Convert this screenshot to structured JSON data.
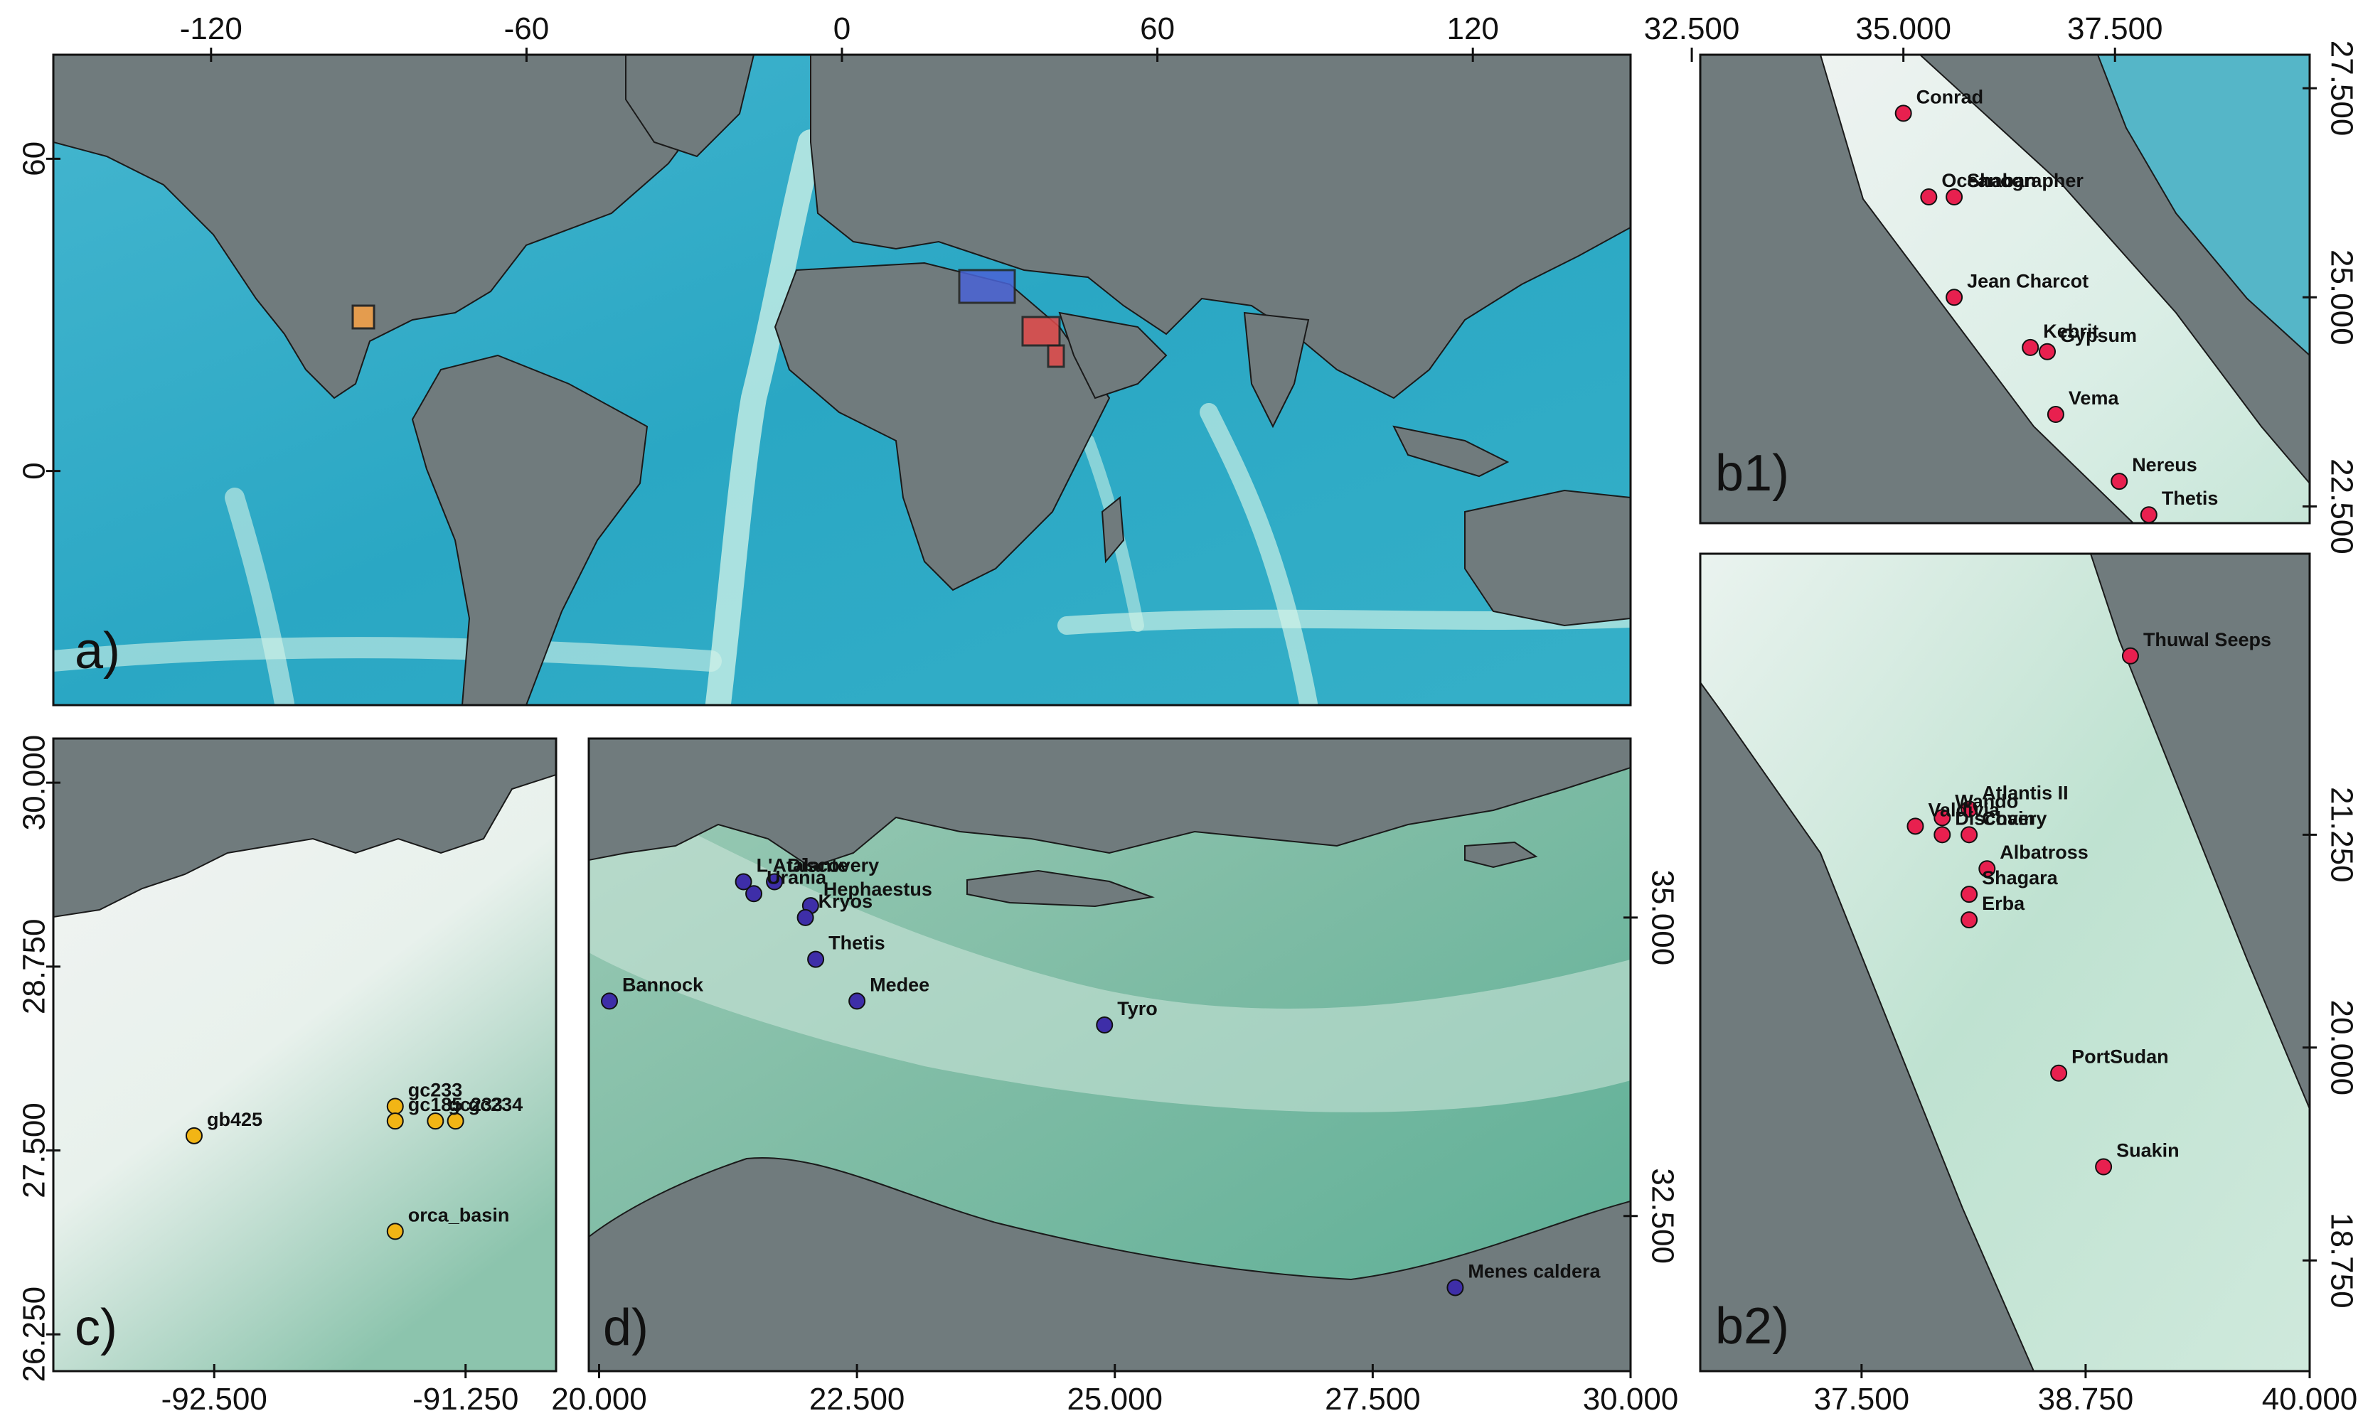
{
  "colors": {
    "land": "#707b7d",
    "ocean_deep": "#2aa7c4",
    "ocean_shelf": "#c8f0e2",
    "sea_light": "#eef3f1",
    "sea_mid": "#9ccbb6",
    "sea_dark": "#4aa58f",
    "red_sea_marker": "#e8204f",
    "med_marker": "#3e2ea8",
    "gulf_marker": "#f2b515",
    "box_gulf": "#f1a04a",
    "box_med": "#4a63d6",
    "box_red": "#e14a4a"
  },
  "panels": {
    "a": {
      "label": "a)",
      "x_ticks": [
        "-120",
        "-60",
        "0",
        "60",
        "120"
      ],
      "y_ticks": [
        "60",
        "0"
      ]
    },
    "b1": {
      "label": "b1)",
      "x_ticks": [
        "32.500",
        "35.000",
        "37.500"
      ],
      "y_ticks": [
        "27.500",
        "25.000",
        "22.500"
      ],
      "sites": [
        {
          "name": "Conrad",
          "lon": 35.0,
          "lat": 27.2
        },
        {
          "name": "Oceanographer",
          "lon": 35.3,
          "lat": 26.2
        },
        {
          "name": "Shaban",
          "lon": 35.6,
          "lat": 26.2
        },
        {
          "name": "Jean Charcot",
          "lon": 35.6,
          "lat": 25.0
        },
        {
          "name": "Kebrit",
          "lon": 36.5,
          "lat": 24.4
        },
        {
          "name": "Gypsum",
          "lon": 36.7,
          "lat": 24.35
        },
        {
          "name": "Vema",
          "lon": 36.8,
          "lat": 23.6
        },
        {
          "name": "Nereus",
          "lon": 37.55,
          "lat": 22.8
        },
        {
          "name": "Thetis",
          "lon": 37.9,
          "lat": 22.4
        }
      ]
    },
    "b2": {
      "label": "b2)",
      "x_ticks": [
        "37.500",
        "38.750",
        "40.000"
      ],
      "y_ticks": [
        "21.250",
        "20.000",
        "18.750"
      ],
      "sites": [
        {
          "name": "Thuwal Seeps",
          "lon": 39.0,
          "lat": 22.3
        },
        {
          "name": "Atlantis II",
          "lon": 38.1,
          "lat": 21.4
        },
        {
          "name": "Wando",
          "lon": 37.95,
          "lat": 21.35
        },
        {
          "name": "Valdivia",
          "lon": 37.8,
          "lat": 21.3
        },
        {
          "name": "Chain",
          "lon": 38.1,
          "lat": 21.25
        },
        {
          "name": "Discovery",
          "lon": 37.95,
          "lat": 21.25
        },
        {
          "name": "Albatross",
          "lon": 38.2,
          "lat": 21.05
        },
        {
          "name": "Shagara",
          "lon": 38.1,
          "lat": 20.9
        },
        {
          "name": "Erba",
          "lon": 38.1,
          "lat": 20.75
        },
        {
          "name": "PortSudan",
          "lon": 38.6,
          "lat": 19.85
        },
        {
          "name": "Suakin",
          "lon": 38.85,
          "lat": 19.3
        }
      ]
    },
    "c": {
      "label": "c)",
      "x_ticks": [
        "-92.500",
        "-91.250"
      ],
      "y_ticks": [
        "30.000",
        "28.750",
        "27.500",
        "26.250"
      ],
      "sites": [
        {
          "name": "gc233",
          "lon": -91.6,
          "lat": 27.8
        },
        {
          "name": "gc234",
          "lon": -91.3,
          "lat": 27.7
        },
        {
          "name": "gc185",
          "lon": -91.6,
          "lat": 27.7
        },
        {
          "name": "gc233",
          "lon": -91.4,
          "lat": 27.7
        },
        {
          "name": "gb425",
          "lon": -92.6,
          "lat": 27.6
        },
        {
          "name": "orca_basin",
          "lon": -91.6,
          "lat": 26.95
        }
      ]
    },
    "d": {
      "label": "d)",
      "x_ticks": [
        "20.000",
        "22.500",
        "25.000",
        "27.500",
        "30.000"
      ],
      "y_ticks": [
        "35.000",
        "32.500"
      ],
      "sites": [
        {
          "name": "L'Atalante",
          "lon": 21.4,
          "lat": 35.3
        },
        {
          "name": "Discovery",
          "lon": 21.7,
          "lat": 35.3
        },
        {
          "name": "Urania",
          "lon": 21.5,
          "lat": 35.2
        },
        {
          "name": "Hephaestus",
          "lon": 22.05,
          "lat": 35.1
        },
        {
          "name": "Kryos",
          "lon": 22.0,
          "lat": 35.0
        },
        {
          "name": "Thetis",
          "lon": 22.1,
          "lat": 34.65
        },
        {
          "name": "Bannock",
          "lon": 20.1,
          "lat": 34.3
        },
        {
          "name": "Medee",
          "lon": 22.5,
          "lat": 34.3
        },
        {
          "name": "Tyro",
          "lon": 24.9,
          "lat": 34.1
        },
        {
          "name": "Menes caldera",
          "lon": 28.3,
          "lat": 31.9
        }
      ]
    }
  }
}
